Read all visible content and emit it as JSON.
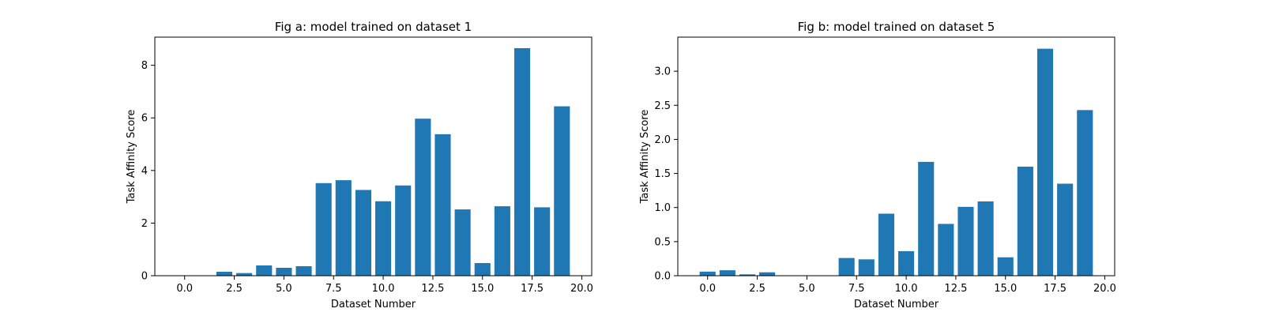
{
  "colors": {
    "bar": "#1f77b4",
    "axis": "#000000",
    "background": "#ffffff"
  },
  "chart_data": [
    {
      "type": "bar",
      "title": "Fig a: model trained on dataset 1",
      "xlabel": "Dataset Number",
      "ylabel": "Task Affinity Score",
      "xlim": [
        -1.5,
        20.5
      ],
      "ylim": [
        0,
        9.07
      ],
      "grid": false,
      "x": [
        0,
        1,
        2,
        3,
        4,
        5,
        6,
        7,
        8,
        9,
        10,
        11,
        12,
        13,
        14,
        15,
        16,
        17,
        18,
        19
      ],
      "values": [
        0,
        0,
        0.15,
        0.1,
        0.39,
        0.3,
        0.36,
        3.52,
        3.63,
        3.26,
        2.83,
        3.43,
        5.97,
        5.38,
        2.52,
        0.48,
        2.64,
        8.65,
        2.6,
        6.44
      ],
      "xticks": [
        0.0,
        2.5,
        5.0,
        7.5,
        10.0,
        12.5,
        15.0,
        17.5,
        20.0
      ],
      "xtick_labels": [
        "0.0",
        "2.5",
        "5.0",
        "7.5",
        "10.0",
        "12.5",
        "15.0",
        "17.5",
        "20.0"
      ],
      "yticks": [
        0,
        2,
        4,
        6,
        8
      ],
      "ytick_labels": [
        "0",
        "2",
        "4",
        "6",
        "8"
      ]
    },
    {
      "type": "bar",
      "title": "Fig b: model trained on dataset 5",
      "xlabel": "Dataset Number",
      "ylabel": "Task Affinity Score",
      "xlim": [
        -1.5,
        20.5
      ],
      "ylim": [
        0,
        3.5
      ],
      "grid": false,
      "x": [
        0,
        1,
        2,
        3,
        4,
        5,
        6,
        7,
        8,
        9,
        10,
        11,
        12,
        13,
        14,
        15,
        16,
        17,
        18,
        19
      ],
      "values": [
        0.06,
        0.08,
        0.02,
        0.05,
        0,
        0,
        0,
        0.26,
        0.24,
        0.91,
        0.36,
        1.67,
        0.76,
        1.01,
        1.09,
        0.27,
        1.6,
        3.33,
        1.35,
        2.43
      ],
      "xticks": [
        0.0,
        2.5,
        5.0,
        7.5,
        10.0,
        12.5,
        15.0,
        17.5,
        20.0
      ],
      "xtick_labels": [
        "0.0",
        "2.5",
        "5.0",
        "7.5",
        "10.0",
        "12.5",
        "15.0",
        "17.5",
        "20.0"
      ],
      "yticks": [
        0.0,
        0.5,
        1.0,
        1.5,
        2.0,
        2.5,
        3.0
      ],
      "ytick_labels": [
        "0.0",
        "0.5",
        "1.0",
        "1.5",
        "2.0",
        "2.5",
        "3.0"
      ]
    }
  ]
}
